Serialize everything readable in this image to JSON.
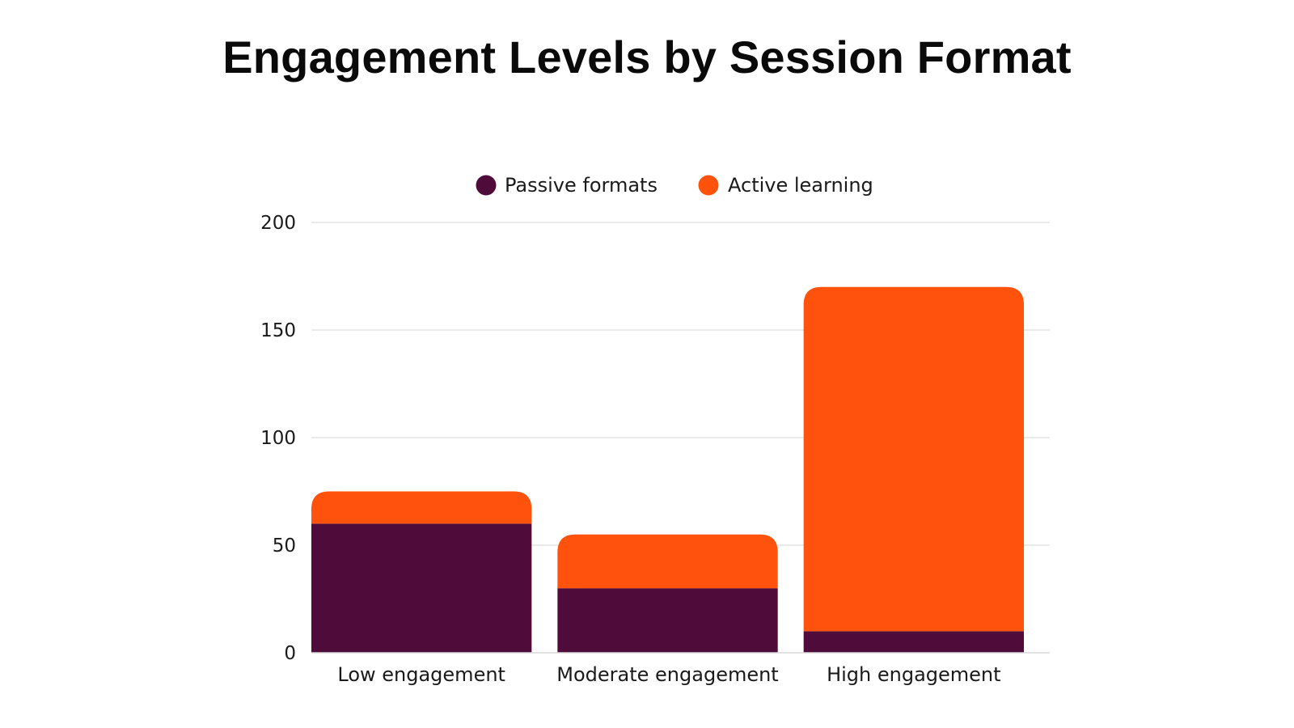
{
  "chart_data": {
    "type": "bar",
    "stacked": true,
    "title": "Engagement Levels by Session Format",
    "xlabel": "",
    "ylabel": "",
    "ylim": [
      0,
      200
    ],
    "yticks": [
      "0",
      "50",
      "100",
      "150",
      "200"
    ],
    "grid": true,
    "legend_position": "top-center",
    "categories": [
      "Low engagement",
      "Moderate engagement",
      "High engagement"
    ],
    "series": [
      {
        "name": "Passive formats",
        "color": "#4f0c3b",
        "values": [
          60,
          30,
          10
        ]
      },
      {
        "name": "Active learning",
        "color": "#ff530d",
        "values": [
          15,
          25,
          160
        ]
      }
    ]
  }
}
